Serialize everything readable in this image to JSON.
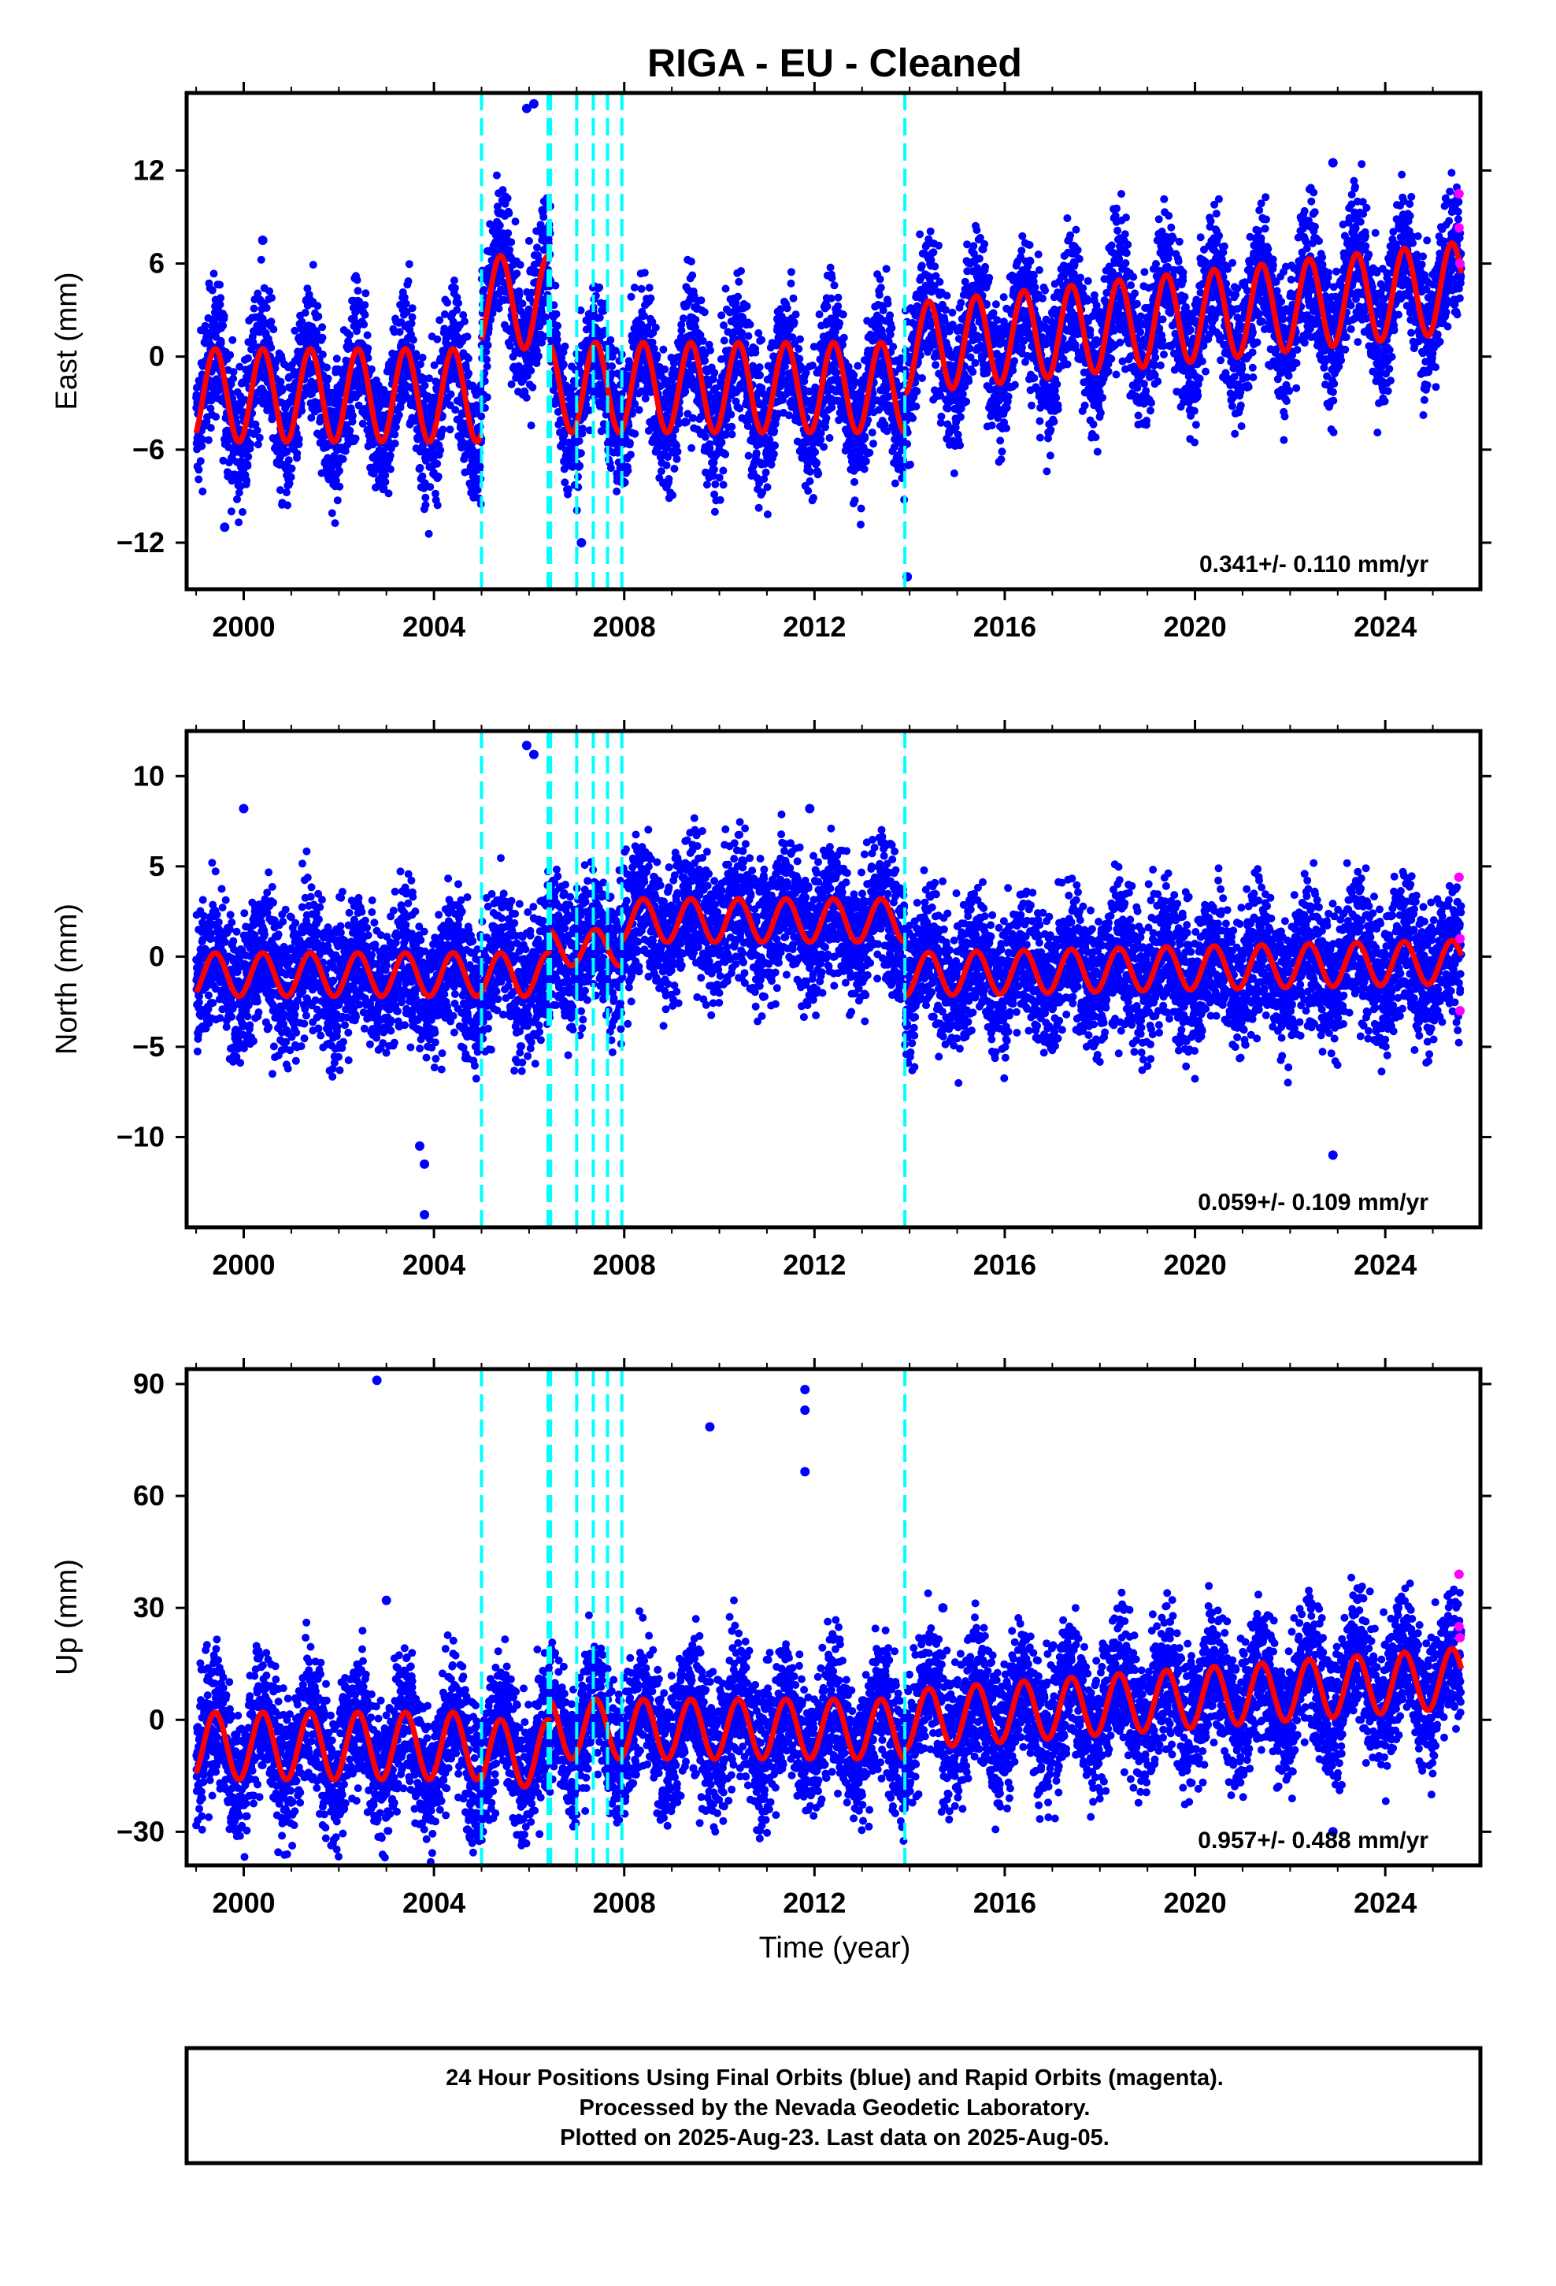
{
  "title": "RIGA  - EU - Cleaned",
  "colors": {
    "final_orbits": "#0000ff",
    "rapid_orbits": "#ff00ff",
    "model": "#ff0000",
    "offsets": "#00ffff",
    "frame": "#000000"
  },
  "xlabel": "Time (year)",
  "footer": {
    "line1": "24 Hour Positions Using Final Orbits (blue) and Rapid Orbits (magenta).",
    "line2": "Processed by the Nevada Geodetic Laboratory.",
    "line3": "Plotted on 2025-Aug-23. Last data on 2025-Aug-05."
  },
  "chart_data": [
    {
      "type": "scatter",
      "component": "East",
      "ylabel": "East (mm)",
      "xlim": [
        1998.8,
        2026.0
      ],
      "ylim": [
        -15,
        17
      ],
      "xticks": [
        "2000",
        "2004",
        "2008",
        "2012",
        "2016",
        "2020",
        "2024"
      ],
      "yticks": [
        "12",
        "6",
        "0",
        "-6",
        "-12"
      ],
      "rate_label": "0.341+/- 0.110 mm/yr",
      "offset_epochs": [
        2005.0,
        2006.4,
        2006.45,
        2007.0,
        2007.35,
        2007.65,
        2007.95,
        2013.9
      ],
      "segments": [
        {
          "start": 1999.0,
          "end": 2005.0,
          "level": -2.5,
          "trend": 0.0,
          "amp": 3.0
        },
        {
          "start": 2005.0,
          "end": 2006.45,
          "level": 3.5,
          "trend": 0.0,
          "amp": 3.0
        },
        {
          "start": 2006.45,
          "end": 2013.9,
          "level": -2.0,
          "trend": 0.0,
          "amp": 2.9
        },
        {
          "start": 2013.9,
          "end": 2025.6,
          "level": 0.5,
          "trend": 0.34,
          "amp": 2.9
        }
      ],
      "rapid_points": [
        [
          2025.55,
          10.5
        ],
        [
          2025.55,
          8.3
        ],
        [
          2025.57,
          6.0
        ]
      ],
      "outliers": [
        [
          2005.95,
          16.0
        ],
        [
          2006.1,
          16.3
        ],
        [
          2013.95,
          -14.2
        ],
        [
          2007.1,
          -12.0
        ],
        [
          2000.4,
          7.5
        ],
        [
          2022.9,
          12.5
        ],
        [
          1999.6,
          -11.0
        ]
      ]
    },
    {
      "type": "scatter",
      "component": "North",
      "ylabel": "North (mm)",
      "xlim": [
        1998.8,
        2026.0
      ],
      "ylim": [
        -15,
        12.5
      ],
      "xticks": [
        "2000",
        "2004",
        "2008",
        "2012",
        "2016",
        "2020",
        "2024"
      ],
      "yticks": [
        "10",
        "5",
        "0",
        "-5",
        "-10"
      ],
      "rate_label": "0.059+/- 0.109 mm/yr",
      "offset_epochs": [
        2005.0,
        2006.4,
        2006.45,
        2007.0,
        2007.35,
        2007.65,
        2007.95,
        2013.9
      ],
      "segments": [
        {
          "start": 1999.0,
          "end": 2006.45,
          "level": -1.0,
          "trend": 0.0,
          "amp": 1.2
        },
        {
          "start": 2006.45,
          "end": 2007.95,
          "level": 0.5,
          "trend": 0.0,
          "amp": 1.0
        },
        {
          "start": 2007.95,
          "end": 2013.9,
          "level": 2.0,
          "trend": 0.0,
          "amp": 1.2
        },
        {
          "start": 2013.9,
          "end": 2025.6,
          "level": -1.0,
          "trend": 0.06,
          "amp": 1.2
        }
      ],
      "rapid_points": [
        [
          2025.55,
          4.4
        ],
        [
          2025.57,
          1.0
        ],
        [
          2025.57,
          -3.0
        ]
      ],
      "outliers": [
        [
          2005.95,
          11.7
        ],
        [
          2006.1,
          11.2
        ],
        [
          2003.8,
          -14.3
        ],
        [
          2003.8,
          -11.5
        ],
        [
          2003.7,
          -10.5
        ],
        [
          2022.9,
          -11.0
        ],
        [
          2000.0,
          8.2
        ],
        [
          2011.9,
          8.2
        ]
      ]
    },
    {
      "type": "scatter",
      "component": "Up",
      "ylabel": "Up (mm)",
      "xlim": [
        1998.8,
        2026.0
      ],
      "ylim": [
        -39,
        94
      ],
      "xticks": [
        "2000",
        "2004",
        "2008",
        "2012",
        "2016",
        "2020",
        "2024"
      ],
      "yticks": [
        "90",
        "60",
        "30",
        "0",
        "-30"
      ],
      "rate_label": "0.957+/- 0.488 mm/yr",
      "offset_epochs": [
        2005.0,
        2006.4,
        2006.45,
        2007.0,
        2007.35,
        2007.65,
        2007.95,
        2013.9
      ],
      "segments": [
        {
          "start": 1999.0,
          "end": 2005.0,
          "level": -7.0,
          "trend": 0.0,
          "amp": 9.0
        },
        {
          "start": 2005.0,
          "end": 2006.45,
          "level": -9.0,
          "trend": 0.0,
          "amp": 9.0
        },
        {
          "start": 2006.45,
          "end": 2013.9,
          "level": -2.5,
          "trend": 0.0,
          "amp": 8.0
        },
        {
          "start": 2013.9,
          "end": 2025.6,
          "level": 0.0,
          "trend": 0.96,
          "amp": 8.0
        }
      ],
      "rapid_points": [
        [
          2025.55,
          39.0
        ],
        [
          2025.55,
          25.0
        ],
        [
          2025.57,
          22.0
        ]
      ],
      "outliers": [
        [
          2002.8,
          91.0
        ],
        [
          2009.8,
          78.5
        ],
        [
          2011.8,
          88.5
        ],
        [
          2011.8,
          83.0
        ],
        [
          2011.8,
          66.5
        ],
        [
          2003.0,
          32.0
        ],
        [
          2022.9,
          -30.0
        ],
        [
          2014.7,
          30.0
        ]
      ]
    }
  ]
}
